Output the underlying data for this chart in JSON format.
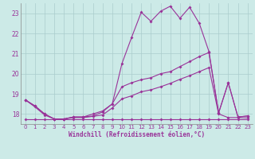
{
  "background_color": "#cceae7",
  "grid_color": "#aacccc",
  "line_color": "#993399",
  "marker": "D",
  "marker_size": 2,
  "xlabel": "Windchill (Refroidissement éolien,°C)",
  "xlim": [
    -0.5,
    23.5
  ],
  "ylim": [
    17.5,
    23.5
  ],
  "yticks": [
    18,
    19,
    20,
    21,
    22,
    23
  ],
  "xticks": [
    0,
    1,
    2,
    3,
    4,
    5,
    6,
    7,
    8,
    9,
    10,
    11,
    12,
    13,
    14,
    15,
    16,
    17,
    18,
    19,
    20,
    21,
    22,
    23
  ],
  "s1_x": [
    0,
    1,
    2,
    3,
    4,
    5,
    6,
    7,
    8,
    9,
    10,
    11,
    12,
    13,
    14,
    15,
    16,
    17,
    18,
    19,
    20,
    21,
    22,
    23
  ],
  "s1_y": [
    18.7,
    18.4,
    18.0,
    17.75,
    17.75,
    17.85,
    17.85,
    17.9,
    18.1,
    18.5,
    20.5,
    21.8,
    23.05,
    22.6,
    23.1,
    23.35,
    22.75,
    23.3,
    22.5,
    21.1,
    18.05,
    19.55,
    17.85,
    17.9
  ],
  "s2_x": [
    0,
    1,
    2,
    3,
    4,
    5,
    6,
    7,
    8,
    9,
    10,
    11,
    12,
    13,
    14,
    15,
    16,
    17,
    18,
    19,
    20,
    21,
    22,
    23
  ],
  "s2_y": [
    18.7,
    18.4,
    18.0,
    17.75,
    17.75,
    17.85,
    17.85,
    18.0,
    18.15,
    18.5,
    19.35,
    19.55,
    19.7,
    19.8,
    20.0,
    20.1,
    20.35,
    20.6,
    20.85,
    21.05,
    18.05,
    19.55,
    17.85,
    17.9
  ],
  "s3_x": [
    0,
    1,
    2,
    3,
    4,
    5,
    6,
    7,
    8,
    9,
    10,
    11,
    12,
    13,
    14,
    15,
    16,
    17,
    18,
    19,
    20,
    21,
    22,
    23
  ],
  "s3_y": [
    18.7,
    18.35,
    17.95,
    17.75,
    17.75,
    17.82,
    17.82,
    17.88,
    17.95,
    18.3,
    18.75,
    18.9,
    19.1,
    19.2,
    19.35,
    19.52,
    19.72,
    19.9,
    20.1,
    20.3,
    18.0,
    17.82,
    17.82,
    17.8
  ],
  "s4_x": [
    0,
    1,
    2,
    3,
    4,
    5,
    6,
    7,
    8,
    9,
    10,
    11,
    12,
    13,
    14,
    15,
    16,
    17,
    18,
    19,
    20,
    21,
    22,
    23
  ],
  "s4_y": [
    17.75,
    17.75,
    17.75,
    17.75,
    17.75,
    17.75,
    17.75,
    17.75,
    17.75,
    17.75,
    17.75,
    17.75,
    17.75,
    17.75,
    17.75,
    17.75,
    17.75,
    17.75,
    17.75,
    17.75,
    17.75,
    17.75,
    17.75,
    17.75
  ]
}
